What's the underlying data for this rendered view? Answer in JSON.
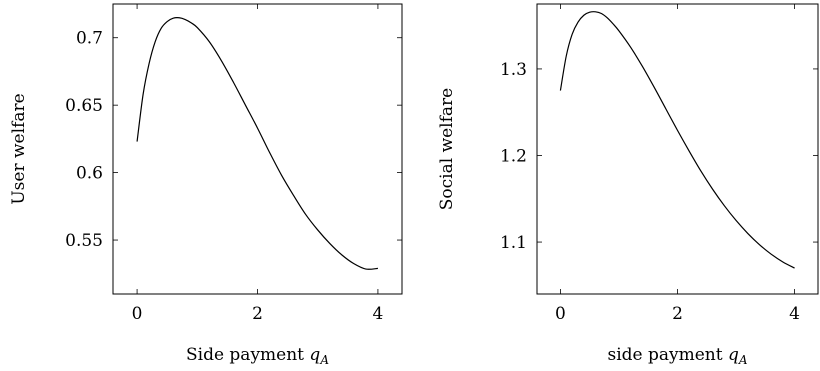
{
  "chart_data": [
    {
      "type": "line",
      "xlabel": "Side payment",
      "xlabel_var": "q",
      "xlabel_sub": "A",
      "ylabel": "User welfare",
      "xlim": [
        -0.4,
        4.4
      ],
      "ylim": [
        0.51,
        0.725
      ],
      "xticks": [
        0,
        2,
        4
      ],
      "yticks": [
        0.55,
        0.6,
        0.65,
        0.7
      ],
      "ytick_labels": [
        "0.55",
        "0.6",
        "0.65",
        "0.7"
      ],
      "xtick_labels": [
        "0",
        "2",
        "4"
      ],
      "series": [
        {
          "x": [
            0,
            0.1,
            0.2,
            0.3,
            0.4,
            0.5,
            0.6,
            0.7,
            0.8,
            0.9,
            1.0,
            1.2,
            1.4,
            1.6,
            1.8,
            2.0,
            2.2,
            2.4,
            2.6,
            2.8,
            3.0,
            3.2,
            3.4,
            3.6,
            3.8,
            4.0
          ],
          "values": [
            0.623,
            0.658,
            0.681,
            0.697,
            0.707,
            0.712,
            0.7145,
            0.7148,
            0.7135,
            0.711,
            0.7075,
            0.697,
            0.683,
            0.667,
            0.65,
            0.633,
            0.615,
            0.598,
            0.583,
            0.569,
            0.5575,
            0.5475,
            0.539,
            0.5325,
            0.5285,
            0.529
          ]
        }
      ]
    },
    {
      "type": "line",
      "xlabel": "side payment",
      "xlabel_var": "q",
      "xlabel_sub": "A",
      "ylabel": "Social welfare",
      "xlim": [
        -0.4,
        4.4
      ],
      "ylim": [
        1.04,
        1.375
      ],
      "xticks": [
        0,
        2,
        4
      ],
      "yticks": [
        1.1,
        1.2,
        1.3
      ],
      "ytick_labels": [
        "1.1",
        "1.2",
        "1.3"
      ],
      "xtick_labels": [
        "0",
        "2",
        "4"
      ],
      "series": [
        {
          "x": [
            0,
            0.1,
            0.2,
            0.3,
            0.4,
            0.5,
            0.6,
            0.7,
            0.8,
            0.9,
            1.0,
            1.2,
            1.4,
            1.6,
            1.8,
            2.0,
            2.2,
            2.4,
            2.6,
            2.8,
            3.0,
            3.2,
            3.4,
            3.6,
            3.8,
            4.0
          ],
          "values": [
            1.275,
            1.315,
            1.34,
            1.354,
            1.362,
            1.3655,
            1.366,
            1.364,
            1.359,
            1.352,
            1.344,
            1.325,
            1.303,
            1.279,
            1.254,
            1.229,
            1.205,
            1.182,
            1.161,
            1.142,
            1.125,
            1.11,
            1.097,
            1.086,
            1.077,
            1.07
          ]
        }
      ]
    }
  ]
}
